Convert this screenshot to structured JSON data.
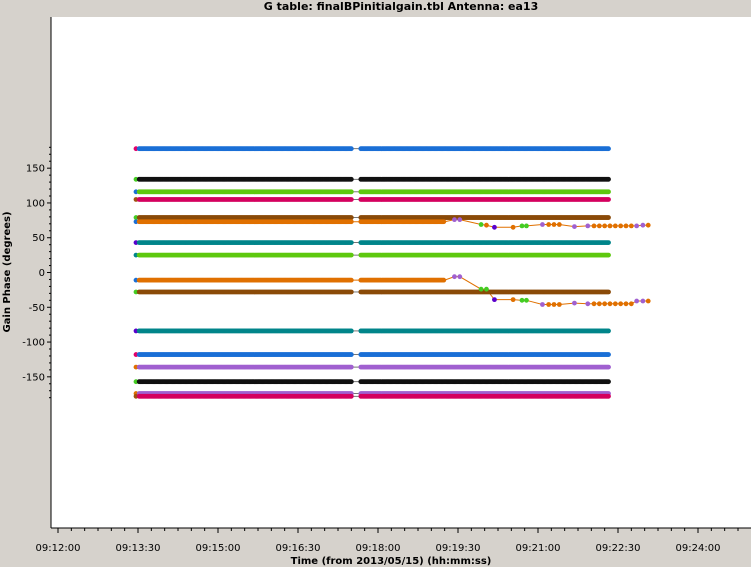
{
  "chart_data": {
    "type": "scatter",
    "title": "G table: finalBPinitialgain.tbl    Antenna: ea13",
    "xlabel": "Time (from 2013/05/15) (hh:mm:ss)",
    "ylabel": "Gain Phase (degrees)",
    "x_tick_labels": [
      "09:12:00",
      "09:13:30",
      "09:15:00",
      "09:16:30",
      "09:18:00",
      "09:19:30",
      "09:21:00",
      "09:22:30",
      "09:24:00"
    ],
    "y_tick_labels": [
      "150",
      "100",
      "50",
      "0",
      "-50",
      "-100",
      "-150"
    ],
    "y_ticks": [
      150,
      100,
      50,
      0,
      -50,
      -100,
      -150
    ],
    "xlim_seconds": [
      0,
      780
    ],
    "ylim": [
      -182,
      182
    ],
    "x_ticks_seconds": [
      0,
      90,
      180,
      270,
      360,
      450,
      540,
      630,
      720
    ],
    "time_span_seconds": [
      90,
      620
    ],
    "time_gap_seconds": [
      330,
      340
    ],
    "samples_per_second": 0.75,
    "series": [
      {
        "value": 178,
        "color": "#1a6fd6",
        "first_color": "#e0006a"
      },
      {
        "value": 134,
        "color": "#111111",
        "first_color": "#44cc22"
      },
      {
        "value": 116,
        "color": "#5ec80f",
        "first_color": "#1a6fd6"
      },
      {
        "value": 105,
        "color": "#d4005e",
        "first_color": "#a05010"
      },
      {
        "value": 79,
        "color": "#8a4a08",
        "first_color": "#44cc22"
      },
      {
        "value": 43,
        "color": "#00858a",
        "first_color": "#5a00cc"
      },
      {
        "value": 25,
        "color": "#5ec80f",
        "first_color": "#00858a"
      },
      {
        "value": -28,
        "color": "#8a4a08",
        "first_color": "#44cc22"
      },
      {
        "value": -84,
        "color": "#00858a",
        "first_color": "#5a00cc"
      },
      {
        "value": -118,
        "color": "#1a6fd6",
        "first_color": "#e0006a"
      },
      {
        "value": -136,
        "color": "#a060d0",
        "first_color": "#e07000"
      },
      {
        "value": -157,
        "color": "#111111",
        "first_color": "#44cc22"
      },
      {
        "value": -174,
        "color": "#a060d0",
        "first_color": "#e07000"
      },
      {
        "value": -178,
        "color": "#d4005e",
        "first_color": "#a05010"
      }
    ],
    "varying_series": [
      {
        "color": "#e07000",
        "first_color": "#1a6fd6",
        "flat_value": 73,
        "flat_end_seconds": 435,
        "points": [
          {
            "x": 446,
            "y": 76,
            "color": "#a060d0"
          },
          {
            "x": 452,
            "y": 76,
            "color": "#a060d0"
          },
          {
            "x": 476,
            "y": 69,
            "color": "#44cc22"
          },
          {
            "x": 482,
            "y": 68,
            "color": "#e07000"
          },
          {
            "x": 491,
            "y": 65,
            "color": "#5a00cc"
          },
          {
            "x": 512,
            "y": 65,
            "color": "#e07000"
          },
          {
            "x": 522,
            "y": 67,
            "color": "#44cc22"
          },
          {
            "x": 527,
            "y": 67,
            "color": "#44cc22"
          },
          {
            "x": 545,
            "y": 69,
            "color": "#a060d0"
          },
          {
            "x": 552,
            "y": 69,
            "color": "#e07000"
          },
          {
            "x": 558,
            "y": 69,
            "color": "#e07000"
          },
          {
            "x": 564,
            "y": 69,
            "color": "#e07000"
          },
          {
            "x": 581,
            "y": 66,
            "color": "#a060d0"
          },
          {
            "x": 596,
            "y": 67,
            "color": "#a060d0"
          },
          {
            "x": 603,
            "y": 67,
            "color": "#e07000"
          },
          {
            "x": 609,
            "y": 67,
            "color": "#e07000"
          },
          {
            "x": 615,
            "y": 67,
            "color": "#e07000"
          },
          {
            "x": 621,
            "y": 67,
            "color": "#e07000"
          },
          {
            "x": 627,
            "y": 67,
            "color": "#e07000"
          },
          {
            "x": 633,
            "y": 67,
            "color": "#e07000"
          },
          {
            "x": 639,
            "y": 67,
            "color": "#e07000"
          },
          {
            "x": 645,
            "y": 67,
            "color": "#e07000"
          },
          {
            "x": 651,
            "y": 67,
            "color": "#a060d0"
          },
          {
            "x": 658,
            "y": 68,
            "color": "#a060d0"
          },
          {
            "x": 664,
            "y": 68,
            "color": "#e07000"
          }
        ]
      },
      {
        "color": "#e07000",
        "first_color": "#1a6fd6",
        "flat_value": -11,
        "flat_end_seconds": 435,
        "points": [
          {
            "x": 446,
            "y": -6,
            "color": "#a060d0"
          },
          {
            "x": 452,
            "y": -6,
            "color": "#a060d0"
          },
          {
            "x": 476,
            "y": -24,
            "color": "#44cc22"
          },
          {
            "x": 482,
            "y": -24,
            "color": "#44cc22"
          },
          {
            "x": 491,
            "y": -39,
            "color": "#5a00cc"
          },
          {
            "x": 512,
            "y": -39,
            "color": "#e07000"
          },
          {
            "x": 522,
            "y": -40,
            "color": "#44cc22"
          },
          {
            "x": 527,
            "y": -40,
            "color": "#44cc22"
          },
          {
            "x": 545,
            "y": -46,
            "color": "#a060d0"
          },
          {
            "x": 552,
            "y": -46,
            "color": "#e07000"
          },
          {
            "x": 558,
            "y": -46,
            "color": "#e07000"
          },
          {
            "x": 564,
            "y": -46,
            "color": "#e07000"
          },
          {
            "x": 581,
            "y": -44,
            "color": "#a060d0"
          },
          {
            "x": 596,
            "y": -45,
            "color": "#a060d0"
          },
          {
            "x": 603,
            "y": -45,
            "color": "#e07000"
          },
          {
            "x": 609,
            "y": -45,
            "color": "#e07000"
          },
          {
            "x": 615,
            "y": -45,
            "color": "#e07000"
          },
          {
            "x": 621,
            "y": -45,
            "color": "#e07000"
          },
          {
            "x": 627,
            "y": -45,
            "color": "#e07000"
          },
          {
            "x": 633,
            "y": -45,
            "color": "#e07000"
          },
          {
            "x": 639,
            "y": -45,
            "color": "#e07000"
          },
          {
            "x": 645,
            "y": -45,
            "color": "#e07000"
          },
          {
            "x": 651,
            "y": -41,
            "color": "#a060d0"
          },
          {
            "x": 658,
            "y": -41,
            "color": "#a060d0"
          },
          {
            "x": 664,
            "y": -41,
            "color": "#e07000"
          }
        ]
      }
    ],
    "grid": false,
    "background_color": "#ffffff",
    "frame_color": "#d6d2cc"
  }
}
